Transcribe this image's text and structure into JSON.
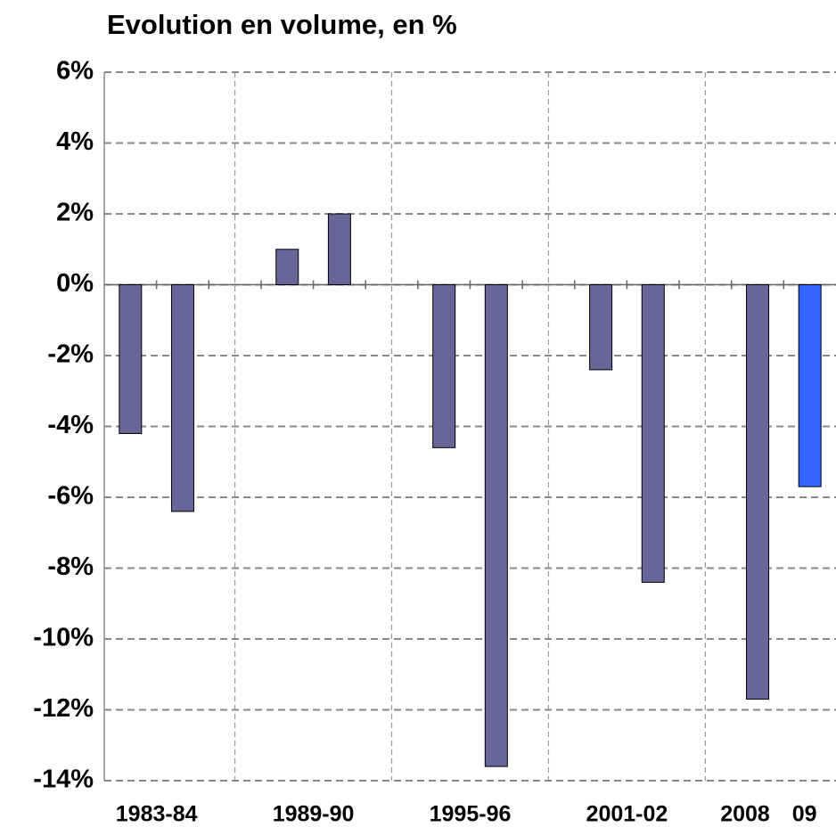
{
  "chart_data": {
    "type": "bar",
    "title": "Evolution en volume, en %",
    "categories": [
      "1983-84",
      null,
      "1989-90",
      null,
      "1995-96",
      null,
      "2001-02",
      null,
      "2008",
      "09"
    ],
    "category_label_colors": [
      "#000000",
      null,
      "#000000",
      null,
      "#000000",
      null,
      "#000000",
      null,
      "#000000",
      "#333399"
    ],
    "values": [
      -4.2,
      -6.4,
      1.0,
      2.0,
      -4.6,
      -13.6,
      -2.4,
      -8.4,
      -11.7,
      -5.7
    ],
    "colors": [
      "#666699",
      "#666699",
      "#666699",
      "#666699",
      "#666699",
      "#666699",
      "#666699",
      "#666699",
      "#666699",
      "#3366ff"
    ],
    "ylim": [
      -14,
      6
    ],
    "yticks": [
      {
        "value": -14,
        "label": "-14%"
      },
      {
        "value": -12,
        "label": "-12%"
      },
      {
        "value": -10,
        "label": "-10%"
      },
      {
        "value": -8,
        "label": "-8%"
      },
      {
        "value": -6,
        "label": "-6%"
      },
      {
        "value": -4,
        "label": "-4%"
      },
      {
        "value": -2,
        "label": "-2%"
      },
      {
        "value": 0,
        "label": "0%"
      },
      {
        "value": 2,
        "label": "2%"
      },
      {
        "value": 4,
        "label": "4%"
      },
      {
        "value": 6,
        "label": "6%"
      }
    ],
    "grid": true
  }
}
